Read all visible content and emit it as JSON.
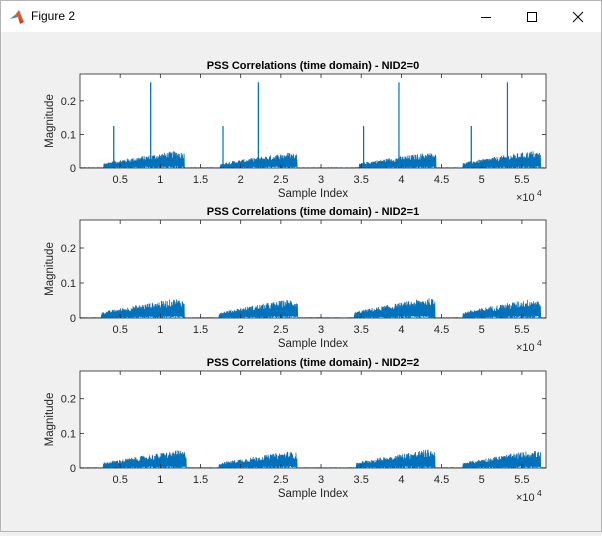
{
  "window": {
    "title": "Figure 2",
    "icon": "matlab-icon",
    "controls": [
      "minimize-icon",
      "maximize-icon",
      "close-icon"
    ]
  },
  "chart_data": [
    {
      "type": "line",
      "title": "PSS Correlations (time domain) - NID2=0",
      "xlabel": "Sample Index",
      "ylabel": "Magnitude",
      "x_multiplier_label": "×10",
      "x_multiplier_exp": "4",
      "xlim": [
        0,
        58000
      ],
      "ylim": [
        0,
        0.28
      ],
      "xticks": [
        5000,
        10000,
        15000,
        20000,
        25000,
        30000,
        35000,
        40000,
        45000,
        50000,
        55000
      ],
      "xtick_labels": [
        "0.5",
        "1",
        "1.5",
        "2",
        "2.5",
        "3",
        "3.5",
        "4",
        "4.5",
        "5",
        "5.5"
      ],
      "yticks": [
        0,
        0.1,
        0.2
      ],
      "ytick_labels": [
        "0",
        "0.1",
        "0.2"
      ],
      "color": "#0072bd",
      "bursts": [
        {
          "start": 3000,
          "end": 13000,
          "peak": 0.055
        },
        {
          "start": 17500,
          "end": 27000,
          "peak": 0.05
        },
        {
          "start": 34800,
          "end": 44300,
          "peak": 0.05
        },
        {
          "start": 47700,
          "end": 57300,
          "peak": 0.055
        }
      ],
      "spikes": [
        {
          "x": 4200,
          "y": 0.125
        },
        {
          "x": 8800,
          "y": 0.255
        },
        {
          "x": 17800,
          "y": 0.125
        },
        {
          "x": 22200,
          "y": 0.255
        },
        {
          "x": 35300,
          "y": 0.125
        },
        {
          "x": 39700,
          "y": 0.255
        },
        {
          "x": 48700,
          "y": 0.125
        },
        {
          "x": 53200,
          "y": 0.255
        }
      ]
    },
    {
      "type": "line",
      "title": "PSS Correlations (time domain) - NID2=1",
      "xlabel": "Sample Index",
      "ylabel": "Magnitude",
      "x_multiplier_label": "×10",
      "x_multiplier_exp": "4",
      "xlim": [
        0,
        58000
      ],
      "ylim": [
        0,
        0.28
      ],
      "xticks": [
        5000,
        10000,
        15000,
        20000,
        25000,
        30000,
        35000,
        40000,
        45000,
        50000,
        55000
      ],
      "xtick_labels": [
        "0.5",
        "1",
        "1.5",
        "2",
        "2.5",
        "3",
        "3.5",
        "4",
        "4.5",
        "5",
        "5.5"
      ],
      "yticks": [
        0,
        0.1,
        0.2
      ],
      "ytick_labels": [
        "0",
        "0.1",
        "0.2"
      ],
      "color": "#0072bd",
      "bursts": [
        {
          "start": 2700,
          "end": 13000,
          "peak": 0.06
        },
        {
          "start": 17300,
          "end": 27100,
          "peak": 0.058
        },
        {
          "start": 34200,
          "end": 44200,
          "peak": 0.062
        },
        {
          "start": 47700,
          "end": 57300,
          "peak": 0.06
        }
      ],
      "spikes": []
    },
    {
      "type": "line",
      "title": "PSS Correlations (time domain) - NID2=2",
      "xlabel": "Sample Index",
      "ylabel": "Magnitude",
      "x_multiplier_label": "×10",
      "x_multiplier_exp": "4",
      "xlim": [
        0,
        58000
      ],
      "ylim": [
        0,
        0.28
      ],
      "xticks": [
        5000,
        10000,
        15000,
        20000,
        25000,
        30000,
        35000,
        40000,
        45000,
        50000,
        55000
      ],
      "xtick_labels": [
        "0.5",
        "1",
        "1.5",
        "2",
        "2.5",
        "3",
        "3.5",
        "4",
        "4.5",
        "5",
        "5.5"
      ],
      "yticks": [
        0,
        0.1,
        0.2
      ],
      "ytick_labels": [
        "0",
        "0.1",
        "0.2"
      ],
      "color": "#0072bd",
      "bursts": [
        {
          "start": 2900,
          "end": 13200,
          "peak": 0.055
        },
        {
          "start": 17300,
          "end": 27000,
          "peak": 0.052
        },
        {
          "start": 34400,
          "end": 44200,
          "peak": 0.058
        },
        {
          "start": 47700,
          "end": 57300,
          "peak": 0.055
        }
      ],
      "spikes": []
    }
  ]
}
